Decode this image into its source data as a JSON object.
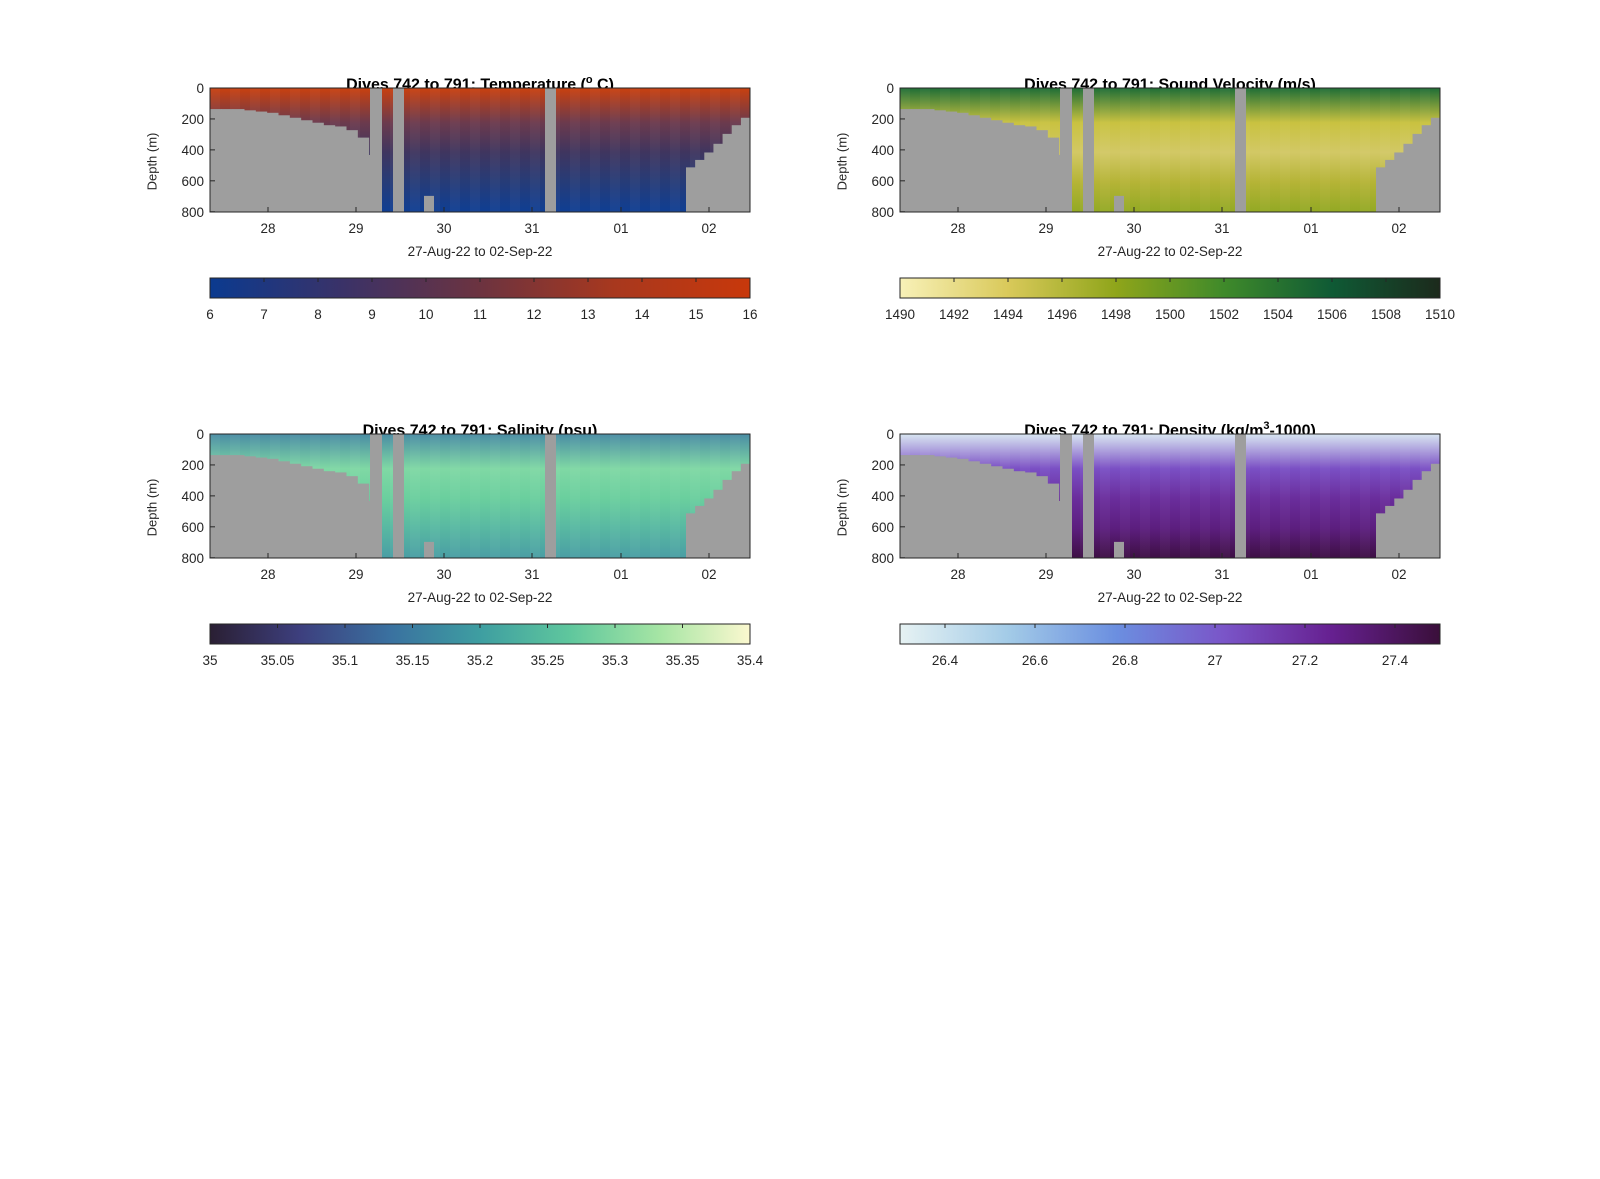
{
  "chart_data": [
    {
      "type": "heatmap",
      "title_prefix": "Dives 742 to 791: Temperature (",
      "title_sup": "o",
      "title_suffix": " C)",
      "xlabel": "27-Aug-22 to 02-Sep-22",
      "ylabel": "Depth (m)",
      "x_ticklabels": [
        "28",
        "29",
        "30",
        "31",
        "01",
        "02"
      ],
      "y_ticklabels": [
        "0",
        "200",
        "400",
        "600",
        "800"
      ],
      "ylim": [
        0,
        1000
      ],
      "colorbar": {
        "ticks": [
          "6",
          "7",
          "8",
          "9",
          "10",
          "11",
          "12",
          "13",
          "14",
          "15",
          "16"
        ],
        "range": [
          6,
          16
        ],
        "colors": [
          "#0b3a8f",
          "#3b3267",
          "#6c3340",
          "#a8381e",
          "#c8380b"
        ]
      },
      "profile_colors": [
        "#c8400f",
        "#6b3a4d",
        "#3f355f",
        "#263c78",
        "#0f3e93"
      ],
      "mask_color": "#9e9e9e"
    },
    {
      "type": "heatmap",
      "title_prefix": "Dives 742 to 791: Sound Velocity (m/s)",
      "title_sup": "",
      "title_suffix": "",
      "xlabel": "27-Aug-22 to 02-Sep-22",
      "ylabel": "Depth (m)",
      "x_ticklabels": [
        "28",
        "29",
        "30",
        "31",
        "01",
        "02"
      ],
      "y_ticklabels": [
        "0",
        "200",
        "400",
        "600",
        "800"
      ],
      "ylim": [
        0,
        1000
      ],
      "colorbar": {
        "ticks": [
          "1490",
          "1492",
          "1494",
          "1496",
          "1498",
          "1500",
          "1502",
          "1504",
          "1506",
          "1508",
          "1510"
        ],
        "range": [
          1490,
          1510
        ],
        "colors": [
          "#f8f1b8",
          "#d9c95a",
          "#8fa51a",
          "#3f8a2a",
          "#0f5a35",
          "#1c2a1c"
        ]
      },
      "profile_colors": [
        "#1f6e36",
        "#c9c240",
        "#d2c865",
        "#b5b436",
        "#93a924"
      ],
      "mask_color": "#9e9e9e"
    },
    {
      "type": "heatmap",
      "title_prefix": "Dives 742 to 791: Salinity (psu)",
      "title_sup": "",
      "title_suffix": "",
      "xlabel": "27-Aug-22 to 02-Sep-22",
      "ylabel": "Depth (m)",
      "x_ticklabels": [
        "28",
        "29",
        "30",
        "31",
        "01",
        "02"
      ],
      "y_ticklabels": [
        "0",
        "200",
        "400",
        "600",
        "800"
      ],
      "ylim": [
        0,
        1000
      ],
      "colorbar": {
        "ticks": [
          "35",
          "35.05",
          "35.1",
          "35.15",
          "35.2",
          "35.25",
          "35.3",
          "35.35",
          "35.4"
        ],
        "range": [
          35,
          35.4
        ],
        "colors": [
          "#2a1f33",
          "#3d3f7e",
          "#3a71a0",
          "#3e9ea1",
          "#5fc79d",
          "#a6e5a4",
          "#fbf8cf"
        ]
      },
      "profile_colors": [
        "#4a8da4",
        "#7fd8a4",
        "#6acf9e",
        "#58b8a2",
        "#4a9ea4"
      ],
      "mask_color": "#9e9e9e"
    },
    {
      "type": "heatmap",
      "title_prefix": "Dives 742 to 791: Density (kg/m",
      "title_sup": "3",
      "title_suffix": "-1000)",
      "xlabel": "27-Aug-22 to 02-Sep-22",
      "ylabel": "Depth (m)",
      "x_ticklabels": [
        "28",
        "29",
        "30",
        "31",
        "01",
        "02"
      ],
      "y_ticklabels": [
        "0",
        "200",
        "400",
        "600",
        "800"
      ],
      "ylim": [
        0,
        1000
      ],
      "colorbar": {
        "ticks": [
          "26.4",
          "26.6",
          "26.8",
          "27",
          "27.2",
          "27.4"
        ],
        "range": [
          26.3,
          27.5
        ],
        "colors": [
          "#e6f2f3",
          "#a3cbe7",
          "#6b8fe0",
          "#7a55c8",
          "#662090",
          "#3a0f3a"
        ]
      },
      "profile_colors": [
        "#d8e6f2",
        "#7a4fc4",
        "#6a2d9c",
        "#5c1e7e",
        "#3e0f44"
      ],
      "mask_color": "#9e9e9e"
    }
  ]
}
